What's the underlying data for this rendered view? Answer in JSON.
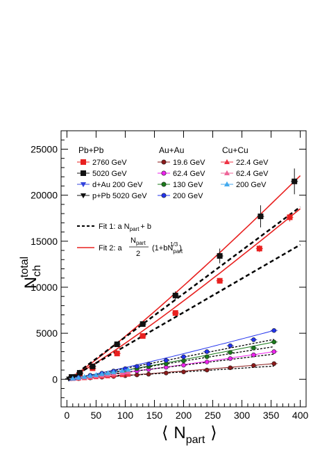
{
  "chart_data": {
    "type": "scatter",
    "ylabel_main": "N",
    "ylabel_sub": "ch",
    "ylabel_sup": "total",
    "xlabel_left": "⟨",
    "xlabel_main": "N",
    "xlabel_sub": "part",
    "xlabel_right": "⟩",
    "xlim": [
      -10,
      410
    ],
    "ylim": [
      -3000,
      27000
    ],
    "xticks": [
      0,
      50,
      100,
      150,
      200,
      250,
      300,
      350,
      400
    ],
    "yticks": [
      0,
      5000,
      10000,
      15000,
      20000,
      25000
    ],
    "legend_groups": [
      "Pb+Pb",
      "Au+Au",
      "Cu+Cu"
    ],
    "legend_fit1": "Fit 1: a N",
    "legend_fit1_sub": "part",
    "legend_fit1_tail": "+ b",
    "legend_fit2_pre": "Fit 2: a",
    "legend_fit2_num": "N",
    "legend_fit2_num_sub": "part",
    "legend_fit2_den": "2",
    "legend_fit2_paren": "(1+bN",
    "legend_fit2_paren_sub": "part",
    "legend_fit2_paren_sup": "1/3",
    "legend_fit2_close": ")",
    "colors": {
      "pb2760": "#e8201f",
      "pb5020": "#111111",
      "dau": "#3344dd",
      "ppb": "#111111",
      "au19": "#8b1a1a",
      "au62": "#ee22ee",
      "au130": "#1a7a1a",
      "au200": "#2233ee",
      "cu22": "#ee3344",
      "cu62": "#ee6699",
      "cu200": "#44aaee",
      "fit2": "#e8201f",
      "fit1": "#000000"
    },
    "series": [
      {
        "key": "pb2760",
        "name": "2760 GeV",
        "marker": "square",
        "color": "pb2760",
        "x": [
          8,
          22,
          44,
          86,
          130,
          186,
          262,
          330,
          382
        ],
        "y": [
          220,
          600,
          1200,
          2800,
          4700,
          7200,
          10700,
          14200,
          17600
        ],
        "err": [
          40,
          60,
          90,
          120,
          180,
          250,
          300,
          380,
          450
        ]
      },
      {
        "key": "pb5020",
        "name": "5020 GeV",
        "marker": "square",
        "color": "pb5020",
        "x": [
          8,
          22,
          44,
          86,
          130,
          186,
          262,
          332,
          390
        ],
        "y": [
          250,
          700,
          1400,
          3800,
          6000,
          9100,
          13400,
          17700,
          21500
        ],
        "err": [
          50,
          80,
          120,
          200,
          250,
          450,
          800,
          1200,
          1400
        ]
      },
      {
        "key": "dau",
        "name": "d+Au 200 GeV",
        "marker": "tri_down",
        "color": "dau",
        "x": [
          4,
          7,
          10,
          13,
          15
        ],
        "y": [
          40,
          70,
          100,
          120,
          150
        ],
        "err": [
          10,
          10,
          15,
          15,
          20
        ]
      },
      {
        "key": "ppb",
        "name": "p+Pb 5020 GeV",
        "marker": "tri_down",
        "color": "ppb",
        "x": [
          3,
          6,
          9,
          12,
          16
        ],
        "y": [
          60,
          100,
          160,
          220,
          320
        ],
        "err": [
          10,
          15,
          20,
          25,
          30
        ]
      },
      {
        "key": "au19",
        "name": "19.6 GeV",
        "marker": "circle",
        "color": "au19",
        "x": [
          20,
          40,
          60,
          80,
          100,
          120,
          140,
          170,
          200,
          240,
          280,
          320,
          355
        ],
        "y": [
          70,
          150,
          230,
          310,
          390,
          470,
          550,
          680,
          800,
          1000,
          1250,
          1500,
          1700
        ],
        "err": [
          20,
          25,
          30,
          35,
          40,
          45,
          50,
          55,
          60,
          70,
          80,
          90,
          100
        ]
      },
      {
        "key": "au62",
        "name": "62.4 GeV",
        "marker": "circle",
        "color": "au62",
        "x": [
          20,
          40,
          60,
          80,
          100,
          120,
          140,
          170,
          200,
          240,
          280,
          320,
          355
        ],
        "y": [
          140,
          290,
          440,
          600,
          740,
          900,
          1060,
          1300,
          1530,
          1880,
          2250,
          2650,
          3000
        ],
        "err": [
          30,
          35,
          40,
          45,
          50,
          55,
          60,
          70,
          80,
          90,
          100,
          110,
          120
        ]
      },
      {
        "key": "au130",
        "name": "130 GeV",
        "marker": "circle",
        "color": "au130",
        "x": [
          20,
          40,
          60,
          80,
          100,
          120,
          140,
          170,
          200,
          240,
          280,
          320,
          355
        ],
        "y": [
          170,
          360,
          560,
          760,
          950,
          1150,
          1360,
          1680,
          2000,
          2450,
          2920,
          3400,
          4050
        ],
        "err": [
          30,
          40,
          45,
          50,
          55,
          60,
          70,
          80,
          90,
          100,
          110,
          120,
          140
        ]
      },
      {
        "key": "au200",
        "name": "200 GeV",
        "marker": "circle",
        "color": "au200",
        "x": [
          20,
          40,
          60,
          80,
          100,
          120,
          140,
          170,
          200,
          240,
          280,
          320,
          355
        ],
        "y": [
          200,
          430,
          660,
          900,
          1150,
          1400,
          1650,
          2050,
          2450,
          3000,
          3650,
          4300,
          5300
        ],
        "err": [
          30,
          40,
          50,
          60,
          70,
          80,
          90,
          100,
          110,
          130,
          150,
          170,
          190
        ]
      },
      {
        "key": "cu22",
        "name": "22.4 GeV",
        "marker": "triangle",
        "color": "cu22",
        "x": [
          10,
          20,
          30,
          40,
          50,
          60,
          70,
          80,
          95,
          105
        ],
        "y": [
          40,
          80,
          130,
          180,
          230,
          280,
          330,
          380,
          450,
          500
        ],
        "err": [
          10,
          12,
          14,
          16,
          18,
          20,
          22,
          24,
          26,
          28
        ]
      },
      {
        "key": "cu62",
        "name": "62.4 GeV",
        "marker": "triangle",
        "color": "cu62",
        "x": [
          10,
          20,
          30,
          40,
          50,
          60,
          70,
          80,
          95,
          105
        ],
        "y": [
          60,
          130,
          200,
          280,
          350,
          420,
          500,
          580,
          680,
          760
        ],
        "err": [
          12,
          14,
          16,
          18,
          20,
          22,
          24,
          26,
          28,
          30
        ]
      },
      {
        "key": "cu200",
        "name": "200 GeV",
        "marker": "triangle",
        "color": "cu200",
        "x": [
          10,
          20,
          30,
          40,
          50,
          60,
          70,
          80,
          95,
          105
        ],
        "y": [
          80,
          170,
          270,
          370,
          470,
          570,
          670,
          780,
          930,
          1040
        ],
        "err": [
          14,
          16,
          18,
          20,
          22,
          24,
          26,
          28,
          30,
          32
        ]
      }
    ],
    "legend_columns": [
      [
        "pb2760",
        "pb5020",
        "dau",
        "ppb"
      ],
      [
        "au19",
        "au62",
        "au130",
        "au200"
      ],
      [
        "cu22",
        "cu62",
        "cu200"
      ]
    ]
  }
}
